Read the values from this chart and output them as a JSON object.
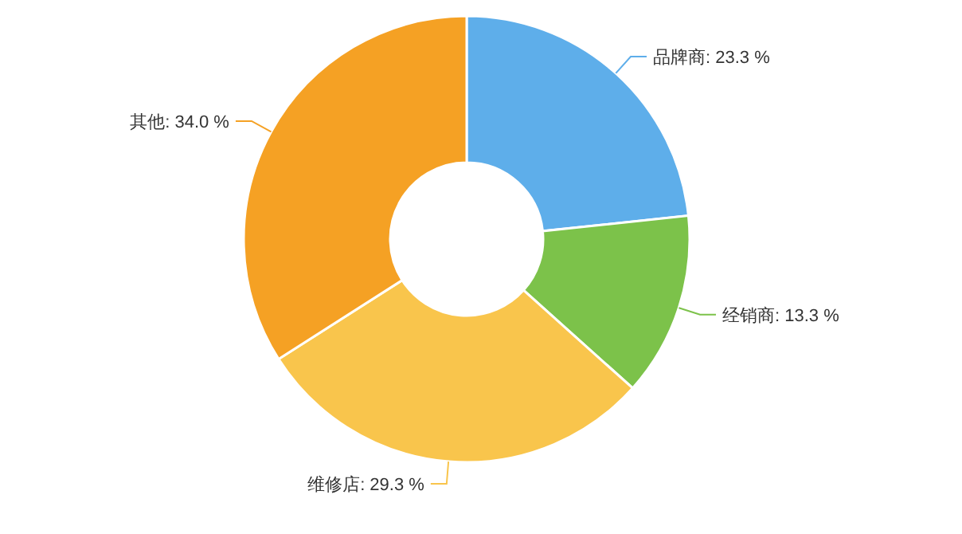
{
  "chart_data": {
    "type": "donut",
    "categories": [
      "品牌商",
      "经销商",
      "维修店",
      "其他"
    ],
    "values": [
      23.3,
      13.3,
      29.3,
      34.0
    ],
    "value_labels": [
      ": 23.3 %",
      ": 13.3 %",
      ": 29.3 %",
      ": 34.0 %"
    ],
    "colors": [
      "#5eaeea",
      "#7cc24a",
      "#f9c54c",
      "#f5a124"
    ]
  }
}
